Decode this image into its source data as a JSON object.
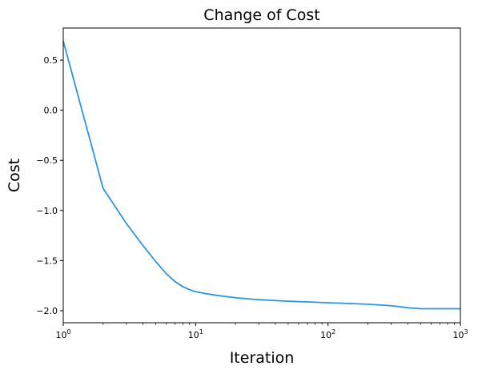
{
  "chart_data": {
    "type": "line",
    "title": "Change of Cost",
    "xlabel": "Iteration",
    "ylabel": "Cost",
    "xscale": "log",
    "xlim": [
      1,
      1000
    ],
    "ylim": [
      -2.12,
      0.82
    ],
    "grid": false,
    "x_ticks": [
      {
        "value": 1,
        "base": "10",
        "exp": "0"
      },
      {
        "value": 10,
        "base": "10",
        "exp": "1"
      },
      {
        "value": 100,
        "base": "10",
        "exp": "2"
      },
      {
        "value": 1000,
        "base": "10",
        "exp": "3"
      }
    ],
    "y_ticks": [
      {
        "value": 0.5,
        "label": "0.5"
      },
      {
        "value": 0.0,
        "label": "0.0"
      },
      {
        "value": -0.5,
        "label": "−0.5"
      },
      {
        "value": -1.0,
        "label": "−1.0"
      },
      {
        "value": -1.5,
        "label": "−1.5"
      },
      {
        "value": -2.0,
        "label": "−2.0"
      }
    ],
    "series": [
      {
        "color": "#2c96e6",
        "x": [
          1,
          2,
          3,
          4,
          5,
          6,
          7,
          8,
          9,
          10,
          12,
          15,
          20,
          30,
          50,
          100,
          200,
          300,
          400,
          500,
          700,
          1000
        ],
        "y": [
          0.69,
          -0.78,
          -1.13,
          -1.35,
          -1.51,
          -1.63,
          -1.71,
          -1.76,
          -1.79,
          -1.81,
          -1.83,
          -1.85,
          -1.87,
          -1.89,
          -1.905,
          -1.92,
          -1.935,
          -1.95,
          -1.97,
          -1.98,
          -1.98,
          -1.98
        ]
      }
    ]
  }
}
